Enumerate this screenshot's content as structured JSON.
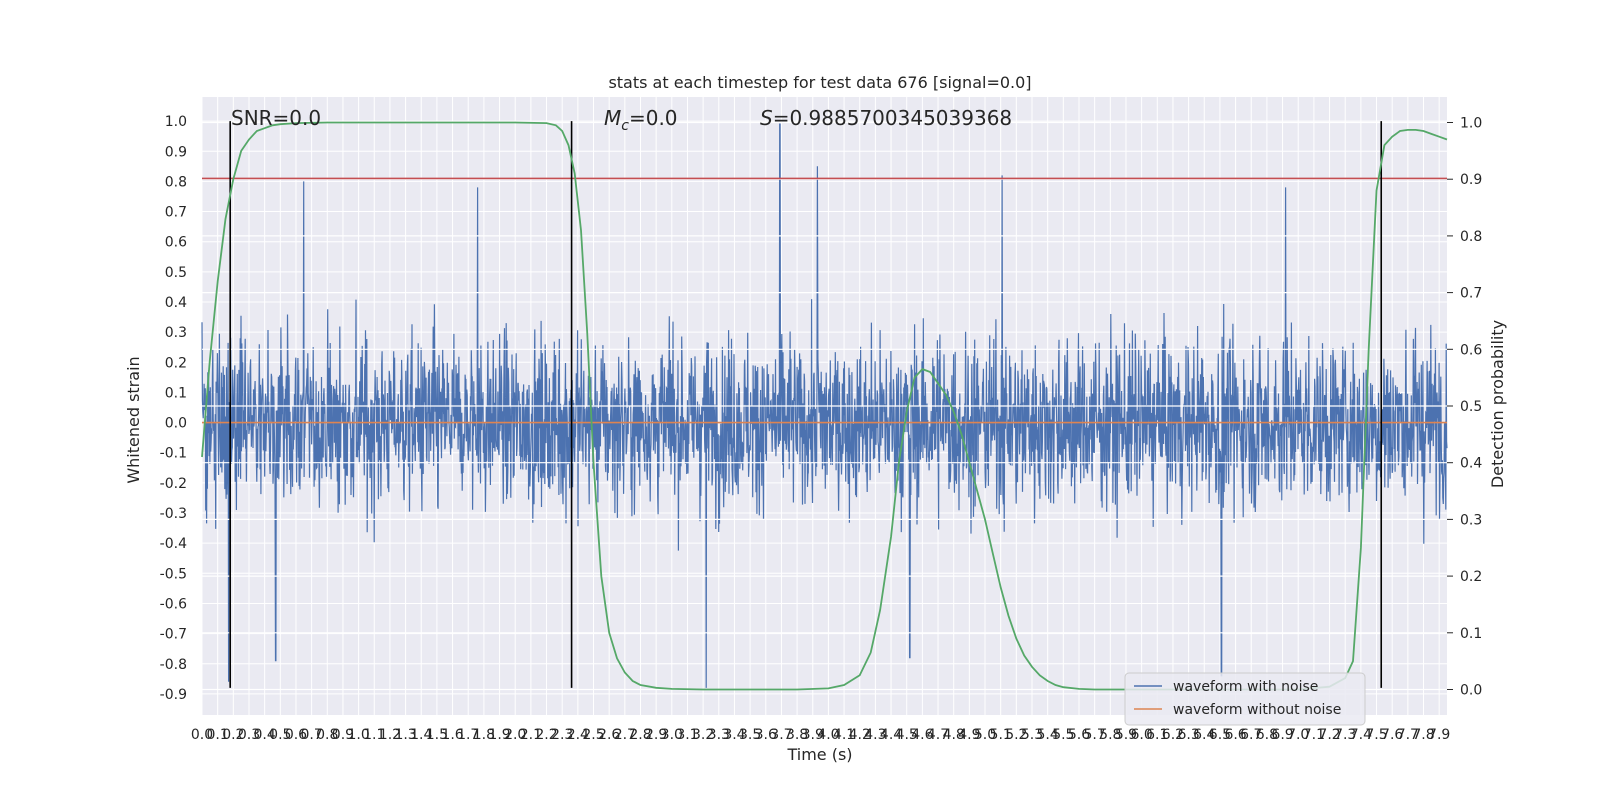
{
  "chart_data": {
    "type": "line",
    "title": "stats at each timestep for test data 676 [signal=0.0]",
    "xlabel": "Time (s)",
    "ylabel": "Whitened strain",
    "ylabel_right": "Detection probability",
    "xlim": [
      0.0,
      7.95
    ],
    "ylim": [
      -0.97,
      1.08
    ],
    "ylim_right": [
      -0.045,
      1.045
    ],
    "x_ticks": [
      0.0,
      0.1,
      0.2,
      0.3,
      0.4,
      0.5,
      0.6,
      0.7,
      0.8,
      0.9,
      1.0,
      1.1,
      1.2,
      1.3,
      1.4,
      1.5,
      1.6,
      1.7,
      1.8,
      1.9,
      2.0,
      2.1,
      2.2,
      2.3,
      2.4,
      2.5,
      2.6,
      2.7,
      2.8,
      2.9,
      3.0,
      3.1,
      3.2,
      3.3,
      3.4,
      3.5,
      3.6,
      3.7,
      3.8,
      3.9,
      4.0,
      4.1,
      4.2,
      4.3,
      4.4,
      4.5,
      4.6,
      4.7,
      4.8,
      4.9,
      5.0,
      5.1,
      5.2,
      5.3,
      5.4,
      5.5,
      5.6,
      5.7,
      5.8,
      5.9,
      6.0,
      6.1,
      6.2,
      6.3,
      6.4,
      6.5,
      6.6,
      6.7,
      6.8,
      6.9,
      7.0,
      7.1,
      7.2,
      7.3,
      7.4,
      7.5,
      7.6,
      7.7,
      7.8,
      7.9
    ],
    "y_ticks": [
      1.0,
      0.9,
      0.8,
      0.7,
      0.6,
      0.5,
      0.4,
      0.3,
      0.2,
      0.1,
      0.0,
      -0.1,
      -0.2,
      -0.3,
      -0.4,
      -0.5,
      -0.6,
      -0.7,
      -0.8,
      -0.9
    ],
    "y_ticks_right": [
      1.0,
      0.9,
      0.8,
      0.7,
      0.6,
      0.5,
      0.4,
      0.3,
      0.2,
      0.1,
      0.0
    ],
    "annotations": {
      "snr": "SNR=0.0",
      "mc_symbol": "M",
      "mc_sub": "c",
      "mc_value": "=0.0",
      "s_symbol": "S",
      "s_value": "=0.9885700345039368"
    },
    "threshold_line": {
      "value": 0.81,
      "color": "#c44e52"
    },
    "vertical_markers": [
      0.18,
      2.36,
      7.53
    ],
    "series": [
      {
        "name": "waveform with noise",
        "color": "#4c72b0",
        "axis": "left",
        "noise_envelope": 0.42,
        "peaks": [
          {
            "x": 3.69,
            "y": 0.99
          },
          {
            "x": 3.93,
            "y": 0.85
          },
          {
            "x": 5.11,
            "y": 0.82
          },
          {
            "x": 0.65,
            "y": 0.8
          },
          {
            "x": 1.76,
            "y": 0.78
          },
          {
            "x": 6.92,
            "y": 0.78
          },
          {
            "x": 0.17,
            "y": -0.86
          },
          {
            "x": 3.22,
            "y": -0.88
          },
          {
            "x": 6.51,
            "y": -0.84
          },
          {
            "x": 4.52,
            "y": -0.78
          },
          {
            "x": 0.47,
            "y": -0.79
          }
        ]
      },
      {
        "name": "waveform without noise",
        "color": "#dd8452",
        "axis": "left",
        "x": [
          0.0,
          7.95
        ],
        "y": [
          0.0,
          0.0
        ]
      },
      {
        "name": "Detection probability",
        "color": "#55a868",
        "axis": "right",
        "x": [
          0.0,
          0.05,
          0.1,
          0.15,
          0.2,
          0.25,
          0.3,
          0.35,
          0.4,
          0.45,
          0.5,
          0.6,
          0.8,
          1.2,
          1.6,
          2.0,
          2.2,
          2.26,
          2.3,
          2.34,
          2.38,
          2.42,
          2.46,
          2.5,
          2.55,
          2.6,
          2.65,
          2.7,
          2.75,
          2.8,
          2.9,
          3.0,
          3.2,
          3.5,
          3.8,
          4.0,
          4.1,
          4.2,
          4.27,
          4.33,
          4.4,
          4.45,
          4.5,
          4.55,
          4.6,
          4.65,
          4.7,
          4.75,
          4.8,
          4.85,
          4.9,
          4.95,
          5.0,
          5.05,
          5.1,
          5.15,
          5.2,
          5.25,
          5.3,
          5.35,
          5.4,
          5.45,
          5.5,
          5.6,
          5.7,
          6.0,
          6.5,
          7.0,
          7.2,
          7.3,
          7.35,
          7.4,
          7.45,
          7.5,
          7.55,
          7.6,
          7.65,
          7.7,
          7.75,
          7.8,
          7.85,
          7.9,
          7.95
        ],
        "y": [
          0.41,
          0.58,
          0.72,
          0.83,
          0.9,
          0.95,
          0.97,
          0.985,
          0.99,
          0.995,
          0.997,
          0.999,
          1.0,
          1.0,
          1.0,
          1.0,
          0.999,
          0.995,
          0.985,
          0.96,
          0.91,
          0.81,
          0.63,
          0.4,
          0.2,
          0.1,
          0.055,
          0.03,
          0.015,
          0.008,
          0.003,
          0.001,
          0.0,
          0.0,
          0.0,
          0.002,
          0.008,
          0.025,
          0.065,
          0.14,
          0.27,
          0.4,
          0.49,
          0.55,
          0.565,
          0.56,
          0.54,
          0.52,
          0.49,
          0.45,
          0.4,
          0.35,
          0.3,
          0.24,
          0.18,
          0.13,
          0.09,
          0.06,
          0.04,
          0.025,
          0.015,
          0.008,
          0.004,
          0.001,
          0.0,
          0.0,
          0.0,
          0.0,
          0.005,
          0.02,
          0.05,
          0.25,
          0.6,
          0.88,
          0.96,
          0.975,
          0.985,
          0.987,
          0.987,
          0.985,
          0.98,
          0.975,
          0.97
        ]
      }
    ],
    "legend": {
      "location": "lower-right",
      "entries": [
        "waveform with noise",
        "waveform without noise"
      ]
    }
  }
}
